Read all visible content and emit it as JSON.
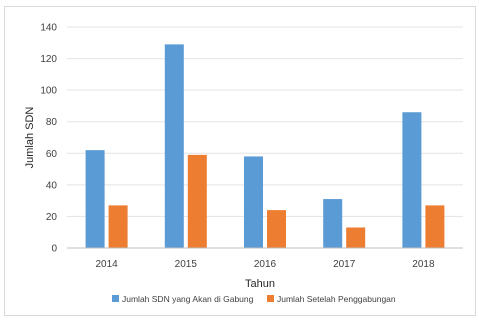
{
  "chart_data": {
    "type": "bar",
    "title": "",
    "xlabel": "Tahun",
    "ylabel": "Jumlah SDN",
    "ylim": [
      0,
      140
    ],
    "yticks": [
      0,
      20,
      40,
      60,
      80,
      100,
      120,
      140
    ],
    "grid": true,
    "legend_position": "bottom",
    "categories": [
      "2014",
      "2015",
      "2016",
      "2017",
      "2018"
    ],
    "series": [
      {
        "name": "Jumlah SDN yang Akan di Gabung",
        "color": "#5B9BD5",
        "values": [
          62,
          129,
          58,
          31,
          86
        ]
      },
      {
        "name": "Jumlah Setelah Penggabungan",
        "color": "#ED7D31",
        "values": [
          27,
          59,
          24,
          13,
          27
        ]
      }
    ]
  }
}
